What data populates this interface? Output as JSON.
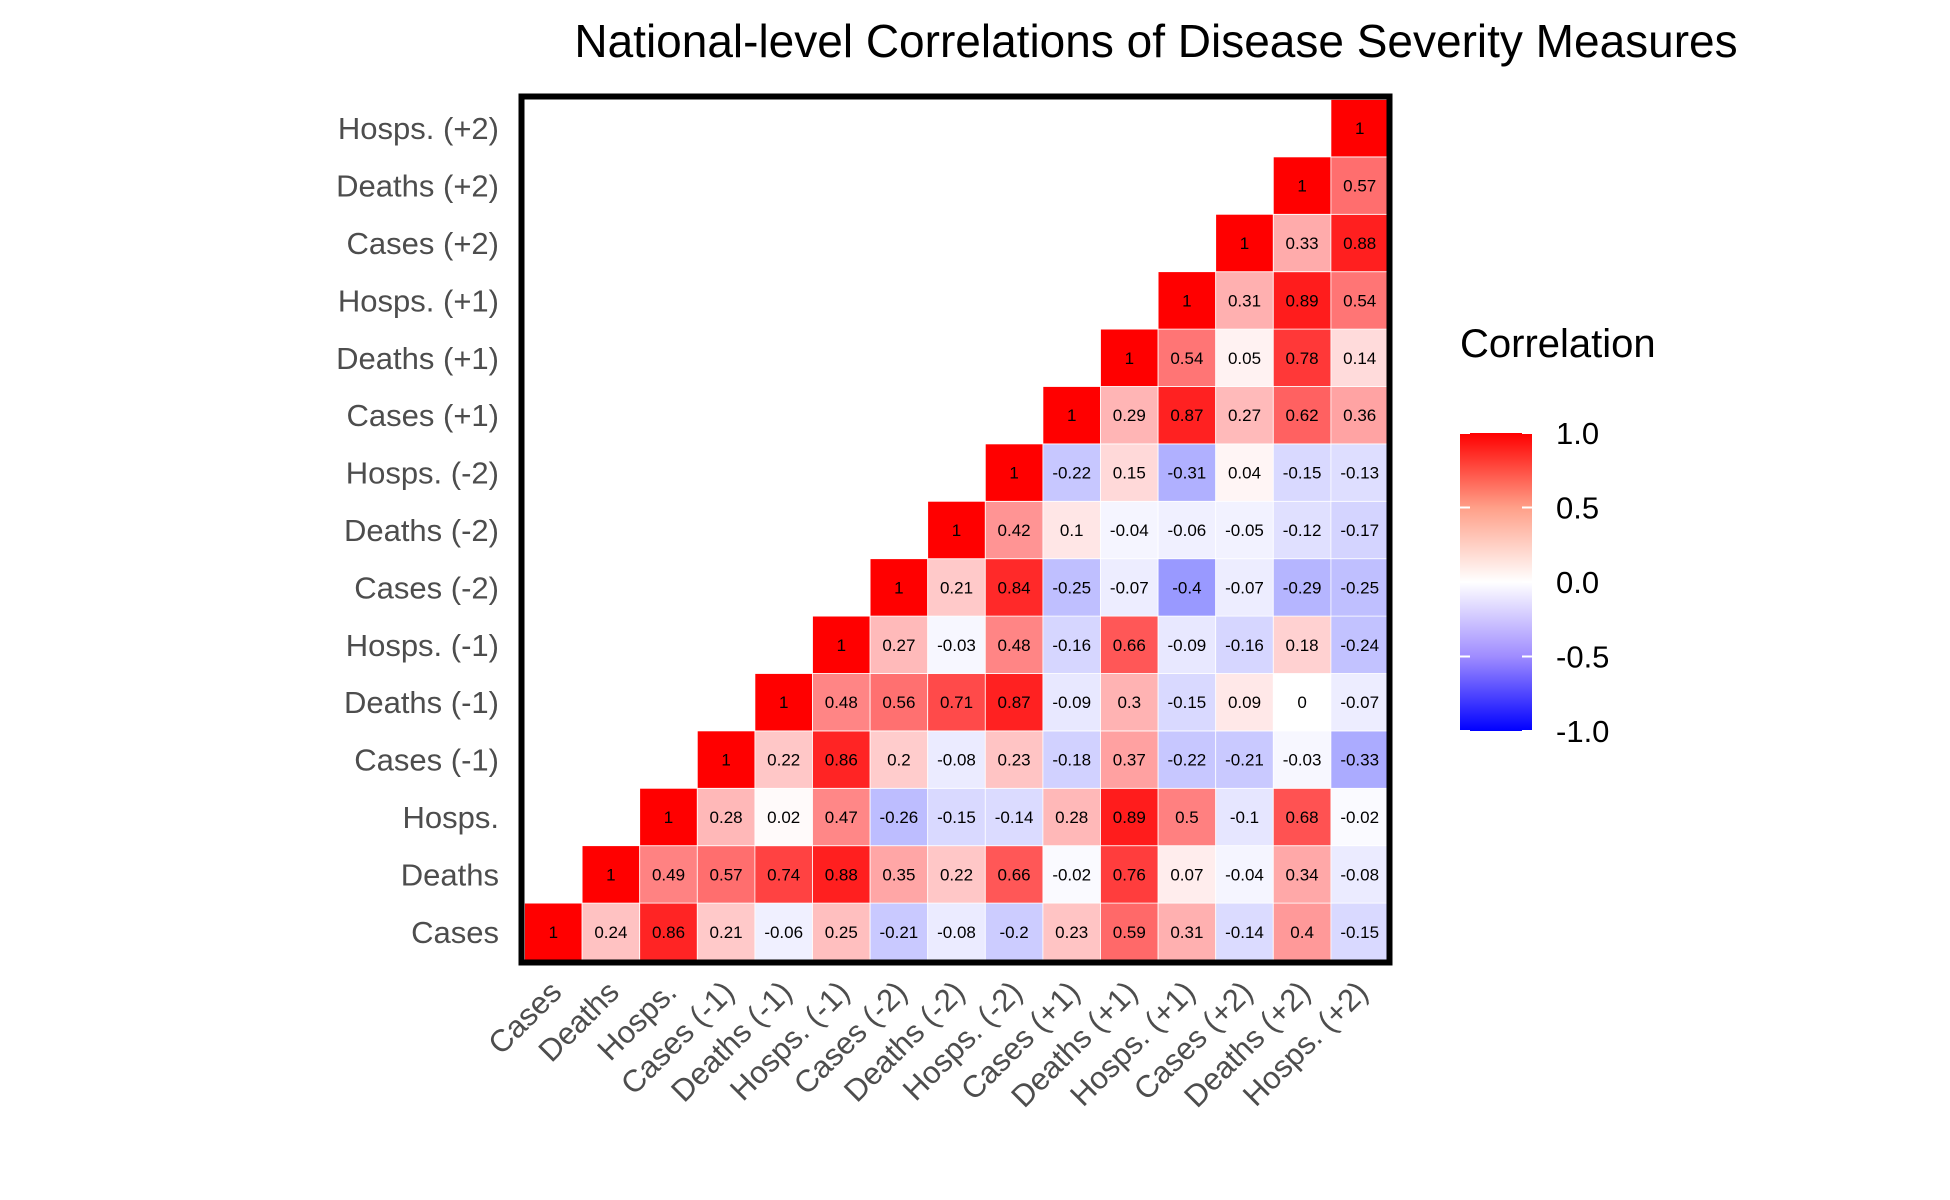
{
  "chart_data": {
    "type": "heatmap",
    "title": "National-level Correlations of Disease Severity Measures",
    "variables": [
      "Cases",
      "Deaths",
      "Hosps.",
      "Cases (-1)",
      "Deaths (-1)",
      "Hosps. (-1)",
      "Cases (-2)",
      "Deaths (-2)",
      "Hosps. (-2)",
      "Cases (+1)",
      "Deaths (+1)",
      "Hosps. (+1)",
      "Cases (+2)",
      "Deaths (+2)",
      "Hosps. (+2)"
    ],
    "matrix_upper_triangle": [
      [
        1,
        0.24,
        0.86,
        0.21,
        -0.06,
        0.25,
        -0.21,
        -0.08,
        -0.2,
        0.23,
        0.59,
        0.31,
        -0.14,
        0.4,
        -0.15
      ],
      [
        1,
        0.49,
        0.57,
        0.74,
        0.88,
        0.35,
        0.22,
        0.66,
        -0.02,
        0.76,
        0.07,
        -0.04,
        0.34,
        -0.08
      ],
      [
        1,
        0.28,
        0.02,
        0.47,
        -0.26,
        -0.15,
        -0.14,
        0.28,
        0.89,
        0.5,
        -0.1,
        0.68,
        -0.02
      ],
      [
        1,
        0.22,
        0.86,
        0.2,
        -0.08,
        0.23,
        -0.18,
        0.37,
        -0.22,
        -0.21,
        -0.03,
        -0.33
      ],
      [
        1,
        0.48,
        0.56,
        0.71,
        0.87,
        -0.09,
        0.3,
        -0.15,
        0.09,
        0,
        -0.07
      ],
      [
        1,
        0.27,
        -0.03,
        0.48,
        -0.16,
        0.66,
        -0.09,
        -0.16,
        0.18,
        -0.24
      ],
      [
        1,
        0.21,
        0.84,
        -0.25,
        -0.07,
        -0.4,
        -0.07,
        -0.29,
        -0.25
      ],
      [
        1,
        0.42,
        0.1,
        -0.04,
        -0.06,
        -0.05,
        -0.12,
        -0.17
      ],
      [
        1,
        -0.22,
        0.15,
        -0.31,
        0.04,
        -0.15,
        -0.13
      ],
      [
        1,
        0.29,
        0.87,
        0.27,
        0.62,
        0.36
      ],
      [
        1,
        0.54,
        0.05,
        0.78,
        0.14
      ],
      [
        1,
        0.31,
        0.89,
        0.54
      ],
      [
        1,
        0.33,
        0.88
      ],
      [
        1,
        0.57
      ],
      [
        1
      ]
    ],
    "color_scale": {
      "low": "#0000ff",
      "mid": "#ffffff",
      "high": "#ff0000",
      "limits": [
        -1,
        1
      ]
    },
    "legend": {
      "title": "Correlation",
      "ticks": [
        "1.0",
        "0.5",
        "0.0",
        "-0.5",
        "-1.0"
      ],
      "tick_values": [
        1,
        0.5,
        0,
        -0.5,
        -1
      ],
      "placement": "right"
    },
    "grid": false
  }
}
